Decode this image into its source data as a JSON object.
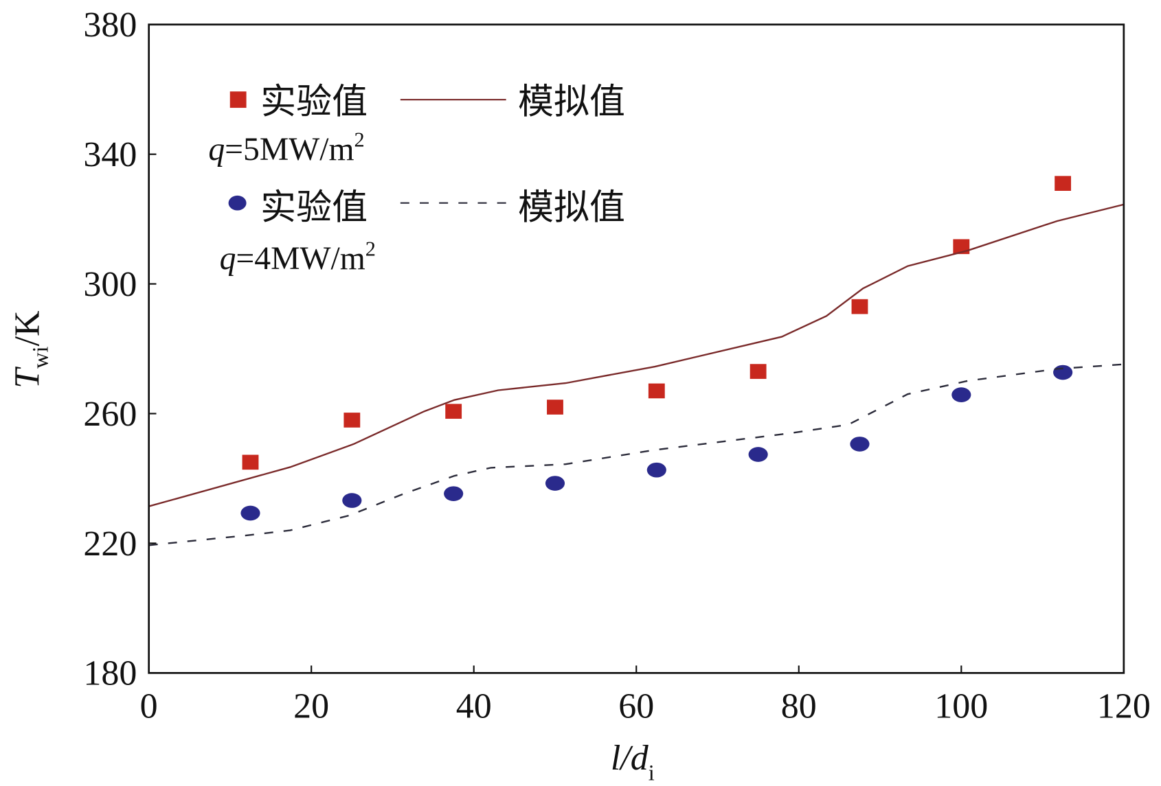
{
  "chart_data": {
    "type": "scatter",
    "xlabel": {
      "main": "l/d",
      "sub": "i"
    },
    "ylabel": {
      "main": "T",
      "sub": "wi",
      "unit": "/K"
    },
    "xlim": [
      0,
      120
    ],
    "ylim": [
      180,
      380
    ],
    "xticks": [
      0,
      20,
      40,
      60,
      80,
      100,
      120
    ],
    "yticks": [
      180,
      220,
      260,
      300,
      340,
      380
    ],
    "grid": false,
    "legend_placement": "top-left",
    "legend": [
      {
        "marker_label": "实验值",
        "line_label": "模拟值",
        "condition": "q=5MW/m²",
        "q_sym": "q",
        "q_rest": "=5MW/m",
        "q_sup": "2"
      },
      {
        "marker_label": "实验值",
        "line_label": "模拟值",
        "condition": "q=4MW/m²",
        "q_sym": "q",
        "q_rest": "=4MW/m",
        "q_sup": "2"
      }
    ],
    "series": [
      {
        "kind": "points",
        "marker": "square",
        "color": "#c8281e",
        "group": 0,
        "x": [
          12.5,
          25,
          37.5,
          50,
          62.5,
          75,
          87.5,
          100,
          112.5
        ],
        "y": [
          245,
          258,
          260.7,
          262,
          267,
          273,
          293,
          311.5,
          331
        ]
      },
      {
        "kind": "points",
        "marker": "circle",
        "color": "#2a2a8c",
        "group": 1,
        "x": [
          12.5,
          25,
          37.5,
          50,
          62.5,
          75,
          87.5,
          100,
          112.5
        ],
        "y": [
          229.3,
          233.2,
          235.3,
          238.5,
          242.6,
          247.4,
          250.6,
          265.8,
          272.7
        ]
      },
      {
        "kind": "line",
        "style": "solid",
        "color": "#7a2a2a",
        "group": 0,
        "x": [
          0,
          17.4,
          25.2,
          33.9,
          37.6,
          43,
          51.3,
          62.3,
          77.9,
          83.4,
          87.9,
          93.4,
          100.8,
          111.8,
          120
        ],
        "y": [
          231.4,
          243.5,
          250.6,
          260.7,
          264.2,
          267.2,
          269.4,
          274.5,
          283.7,
          290.1,
          298.6,
          305.5,
          310.3,
          319.4,
          324.5
        ]
      },
      {
        "kind": "line",
        "style": "dashed",
        "color": "#2b2b3a",
        "group": 1,
        "x": [
          0,
          11.9,
          17.4,
          24.7,
          31.1,
          37.6,
          42.1,
          51.3,
          62.3,
          78.8,
          86.1,
          93.4,
          100.8,
          111.8,
          120
        ],
        "y": [
          219.4,
          222.4,
          224,
          228.6,
          235,
          240.8,
          243.3,
          244.4,
          248.8,
          253.9,
          256.6,
          266,
          270.1,
          273.8,
          275.2
        ]
      }
    ]
  }
}
